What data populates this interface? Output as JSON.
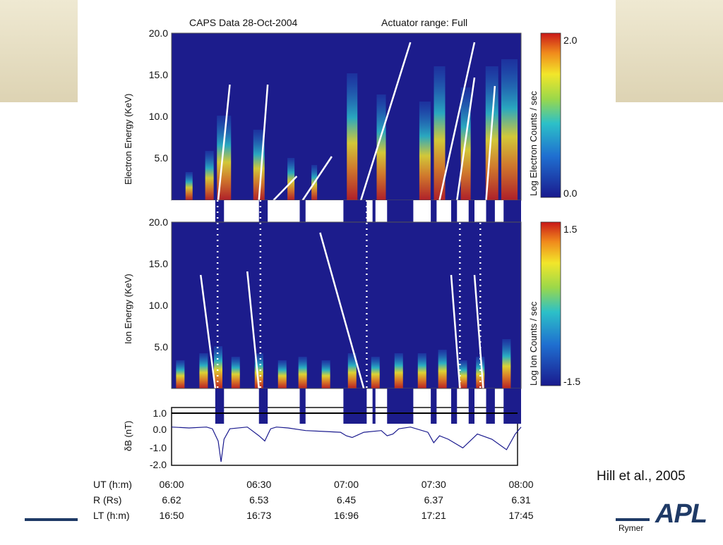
{
  "header": {
    "title": "CAPS Data 28-Oct-2004",
    "actuator": "Actuator range: Full"
  },
  "chart_data": [
    {
      "type": "heatmap",
      "ylabel": "Electron Energy (KeV)",
      "yticks": [
        "20.0",
        "15.0",
        "10.0",
        "5.0"
      ],
      "ylim": [
        0,
        20
      ],
      "colorbar": {
        "label": "Log Electron Counts / sec",
        "max": "2.0",
        "min": "0.0"
      }
    },
    {
      "type": "heatmap",
      "ylabel": "Ion Energy (KeV)",
      "yticks": [
        "20.0",
        "15.0",
        "10.0",
        "5.0"
      ],
      "ylim": [
        0,
        20
      ],
      "colorbar": {
        "label": "Log Ion Counts / sec",
        "max": "1.5",
        "min": "-1.5"
      }
    },
    {
      "type": "line",
      "ylabel": "δB (nT)",
      "yticks": [
        "1.0",
        "0.0",
        "-1.0",
        "-2.0"
      ],
      "ylim": [
        -2,
        1
      ],
      "x": [
        0,
        6,
        12,
        14,
        16,
        17,
        18,
        20,
        26,
        30,
        32,
        34,
        36,
        40,
        46,
        52,
        58,
        60,
        62,
        66,
        72,
        74,
        76,
        78,
        82,
        88,
        90,
        92,
        95,
        100,
        105,
        110,
        115,
        118,
        120
      ],
      "values": [
        0.2,
        0.15,
        0.2,
        0.1,
        -0.6,
        -1.8,
        -0.5,
        0.1,
        0.2,
        -0.3,
        -0.6,
        0.1,
        0.2,
        0.15,
        0.0,
        -0.05,
        -0.1,
        -0.3,
        -0.4,
        -0.1,
        0.0,
        -0.3,
        -0.2,
        0.1,
        0.2,
        -0.1,
        -0.7,
        -0.3,
        -0.5,
        -1.0,
        -0.2,
        -0.5,
        -1.1,
        -0.2,
        0.2
      ]
    }
  ],
  "xaxis": {
    "ut_label": "UT (h:m)",
    "ut": [
      "06:00",
      "06:30",
      "07:00",
      "07:30",
      "08:00"
    ],
    "r_label": "R (Rs)",
    "r": [
      "6.62",
      "6.53",
      "6.45",
      "6.37",
      "6.31"
    ],
    "lt_label": "LT (h:m)",
    "lt": [
      "16:50",
      "16:73",
      "16:96",
      "17:21",
      "17:45"
    ]
  },
  "citation": "Hill et al., 2005",
  "author": "Rymer",
  "logo": "APL",
  "colors": {
    "background": "#1c1c8c",
    "highlight": "#d8281a",
    "lines": "#ffffff",
    "bar": "#1f3a66"
  }
}
